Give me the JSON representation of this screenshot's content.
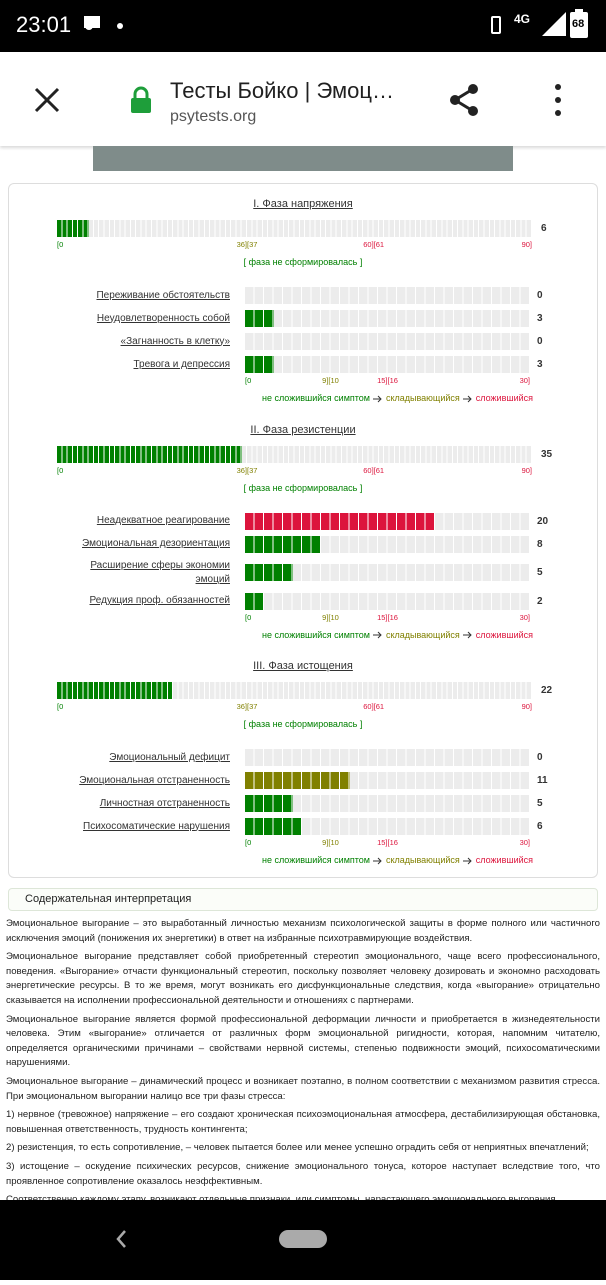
{
  "status_bar": {
    "time": "23:01",
    "network": "4G",
    "battery": "68"
  },
  "browser": {
    "title": "Тесты Бойко | Эмоц…",
    "url": "psytests.org"
  },
  "results": {
    "phase_scale": [
      {
        "value": 0,
        "label": "[0"
      },
      {
        "value": 36,
        "label": "36][37"
      },
      {
        "value": 60,
        "label": "60][61"
      },
      {
        "value": 90,
        "label": "90]"
      }
    ],
    "symptom_scale": [
      {
        "value": 0,
        "label": "[0"
      },
      {
        "value": 9,
        "label": "9][10"
      },
      {
        "value": 15,
        "label": "15][16"
      },
      {
        "value": 30,
        "label": "30]"
      }
    ],
    "legend": [
      {
        "label": "не сложившийся симптом",
        "color": "#008000"
      },
      {
        "label": "складывающийся",
        "color": "#808000"
      },
      {
        "label": "сложившийся",
        "color": "#dc143c"
      }
    ],
    "phases": [
      {
        "title": "I. Фаза напряжения",
        "value": 6,
        "note": "[ фаза не сформировалась ]",
        "symptoms": [
          {
            "name": "Переживание обстоятельств",
            "value": 0
          },
          {
            "name": "Неудовлетворенность собой",
            "value": 3
          },
          {
            "name": "«Загнанность в клетку»",
            "value": 0
          },
          {
            "name": "Тревога и депрессия",
            "value": 3
          }
        ]
      },
      {
        "title": "II. Фаза резистенции",
        "value": 35,
        "note": "[ фаза не сформировалась ]",
        "symptoms": [
          {
            "name": "Неадекватное реагирование",
            "value": 20
          },
          {
            "name": "Эмоциональная дезориентация",
            "value": 8
          },
          {
            "name": "Расширение сферы экономии эмоций",
            "value": 5
          },
          {
            "name": "Редукция проф. обязанностей",
            "value": 2
          }
        ]
      },
      {
        "title": "III. Фаза истощения",
        "value": 22,
        "note": "[ фаза не сформировалась ]",
        "symptoms": [
          {
            "name": "Эмоциональный дефицит",
            "value": 0
          },
          {
            "name": "Эмоциональная отстраненность",
            "value": 11
          },
          {
            "name": "Личностная отстраненность",
            "value": 5
          },
          {
            "name": "Психосоматические нарушения",
            "value": 6
          }
        ]
      }
    ]
  },
  "interpretation": {
    "title": "Содержательная интерпретация",
    "paragraphs": [
      "Эмоциональное выгорание – это выработанный личностью механизм психологической защиты в форме полного или частичного исключения эмоций (понижения их энергетики) в ответ на избранные психотравмирующие воздействия.",
      "Эмоциональное выгорание представляет собой приобретенный стереотип эмоционального, чаще всего профессионального, поведения. «Выгорание» отчасти функциональный стереотип, поскольку позволяет человеку дозировать и экономно расходовать энергетические ресурсы. В то же время, могут возникать его дисфункциональные следствия, когда «выгорание» отрицательно сказывается на исполнении профессиональной деятельности и отношениях с партнерами.",
      "Эмоциональное выгорание является формой профессиональной деформации личности и приобретается в жизнедеятельности человека. Этим «выгорание» отличается от различных форм эмоциональной ригидности, которая, напомним читателю, определяется органическими причинами – свойствами нервной системы, степенью подвижности эмоций, психосоматическими нарушениями.",
      "Эмоциональное выгорание – динамический процесс и возникает поэтапно, в полном соответствии с механизмом развития стресса. При эмоциональном выгорании налицо все три фазы стресса:",
      "1) нервное (тревожное) напряжение – его создают хроническая психоэмоциональная атмосфера, дестабилизирующая обстановка, повышенная ответственность, трудность контингента;",
      "2) резистенция, то есть сопротивление, – человек пытается более или менее успешно оградить себя от неприятных впечатлений;",
      "3) истощение – оскудение психических ресурсов, снижение эмоционального тонуса, которое наступает вследствие того, что проявленное сопротивление оказалось неэффективным.",
      "Соответственно каждому этапу, возникают отдельные признаки, или симптомы, нарастающего эмоционального выгорания."
    ]
  }
}
